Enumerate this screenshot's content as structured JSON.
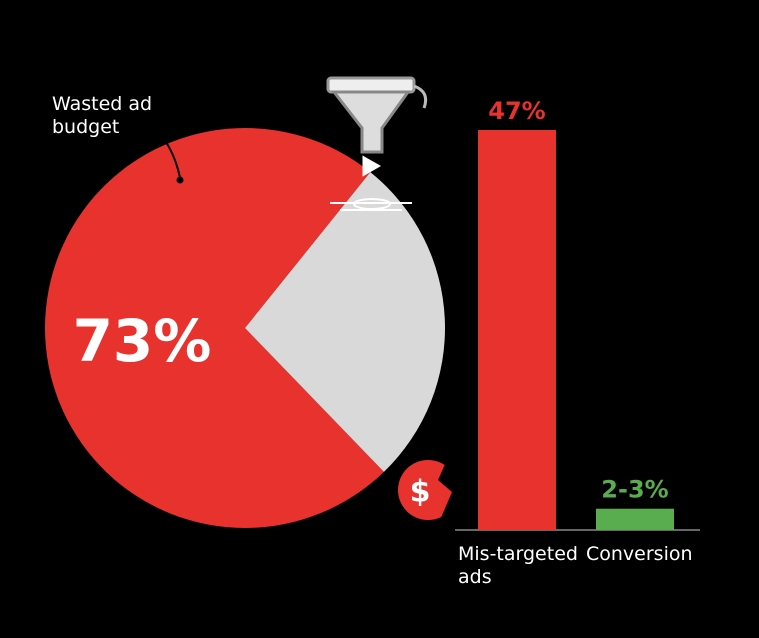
{
  "chart_data": [
    {
      "type": "pie",
      "categories": [
        "Wasted ad budget",
        null
      ],
      "values": [
        73,
        27
      ],
      "value_labels": [
        "73%",
        null
      ],
      "colors": [
        "#e8322e",
        "#d9d9d9"
      ]
    },
    {
      "type": "bar",
      "categories": [
        "Mis-targeted ads",
        "Conversion"
      ],
      "values": [
        47,
        2.5
      ],
      "value_labels": [
        "47%",
        "2-3%"
      ],
      "colors": [
        "#e8322e",
        "#5aad4e"
      ]
    }
  ]
}
